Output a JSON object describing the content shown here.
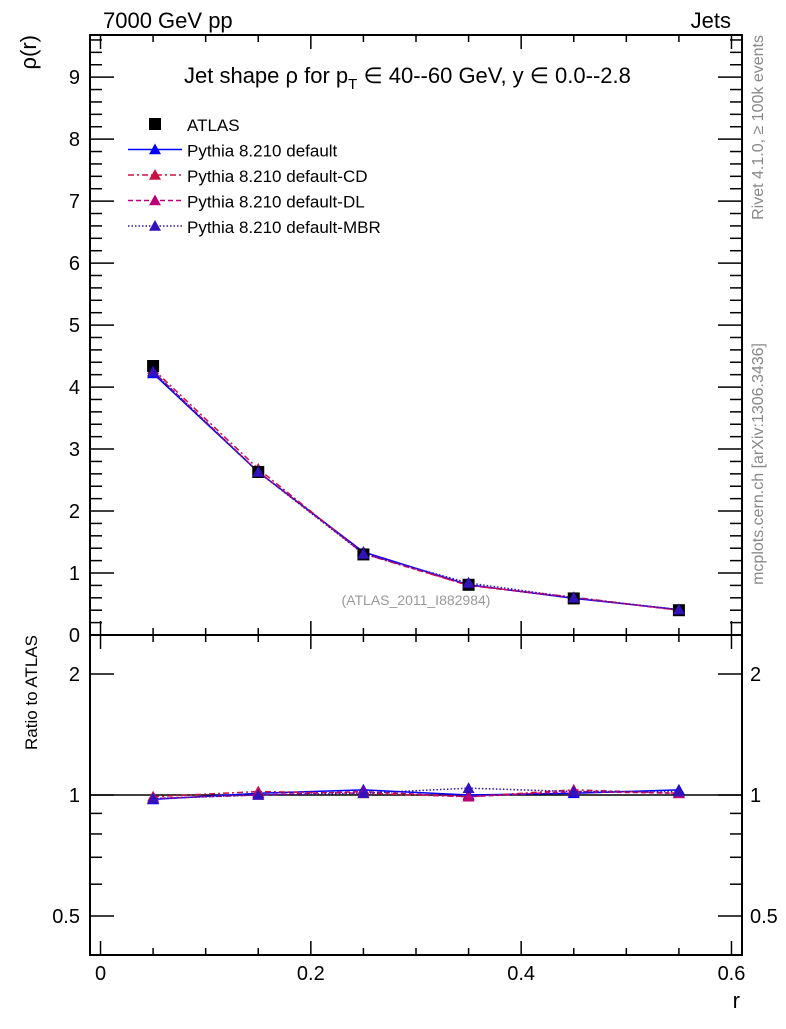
{
  "chart_data": {
    "type": "line",
    "header_left": "7000 GeV pp",
    "header_right": "Jets",
    "title": "Jet shape ρ for p_T ∈ 40--60 GeV, y ∈ 0.0--2.8",
    "title_parts": {
      "pre": "Jet shape ρ for p",
      "sub": "T",
      "post": " ∈ 40--60 GeV, y ∈ 0.0--2.8"
    },
    "ylabel": "ρ(r)",
    "xlabel": "r",
    "ratio_ylabel": "Ratio to ATLAS",
    "side_label_top": "Rivet 4.1.0, ≥ 100k events",
    "side_label_bottom": "mcplots.cern.ch [arXiv:1306.3436]",
    "analysis_label": "(ATLAS_2011_I882984)",
    "xlim": [
      -0.01,
      0.61
    ],
    "ylim": [
      0,
      9.68
    ],
    "ratio_ylim": [
      0.4,
      2.5
    ],
    "ratio_scale": "log",
    "xticks": [
      0,
      0.2,
      0.4,
      0.6
    ],
    "xtick_labels": [
      "0",
      "0.2",
      "0.4",
      "0.6"
    ],
    "yticks": [
      0,
      1,
      2,
      3,
      4,
      5,
      6,
      7,
      8,
      9
    ],
    "ytick_labels": [
      "0",
      "1",
      "2",
      "3",
      "4",
      "5",
      "6",
      "7",
      "8",
      "9"
    ],
    "ratio_yticks": [
      0.5,
      1,
      2
    ],
    "ratio_ytick_labels": [
      "0.5",
      "1",
      "2"
    ],
    "legend_position": "top-left",
    "x": [
      0.05,
      0.15,
      0.25,
      0.35,
      0.45,
      0.55
    ],
    "data": {
      "name": "ATLAS",
      "values": [
        4.34,
        2.63,
        1.3,
        0.81,
        0.59,
        0.4
      ],
      "color": "#000000"
    },
    "series": [
      {
        "name": "Pythia 8.210 default",
        "values": [
          4.22,
          2.63,
          1.34,
          0.81,
          0.59,
          0.41
        ],
        "ratio": [
          0.975,
          1.01,
          1.03,
          1.0,
          1.01,
          1.03
        ],
        "color": "#0000ff",
        "dash": ""
      },
      {
        "name": "Pythia 8.210 default-CD",
        "values": [
          4.29,
          2.68,
          1.31,
          0.8,
          0.61,
          0.4
        ],
        "ratio": [
          0.99,
          1.02,
          1.01,
          0.99,
          1.03,
          1.01
        ],
        "color": "#cc1144",
        "dash": "6,3,2,3"
      },
      {
        "name": "Pythia 8.210 default-DL",
        "values": [
          4.25,
          2.63,
          1.32,
          0.8,
          0.6,
          0.4
        ],
        "ratio": [
          0.98,
          1.0,
          1.02,
          0.99,
          1.02,
          1.01
        ],
        "color": "#bb0077",
        "dash": "5,3"
      },
      {
        "name": "Pythia 8.210 default-MBR",
        "values": [
          4.25,
          2.63,
          1.31,
          0.84,
          0.6,
          0.41
        ],
        "ratio": [
          0.98,
          1.0,
          1.01,
          1.04,
          1.02,
          1.02
        ],
        "color": "#3311bb",
        "dash": "1.5,2"
      }
    ]
  }
}
